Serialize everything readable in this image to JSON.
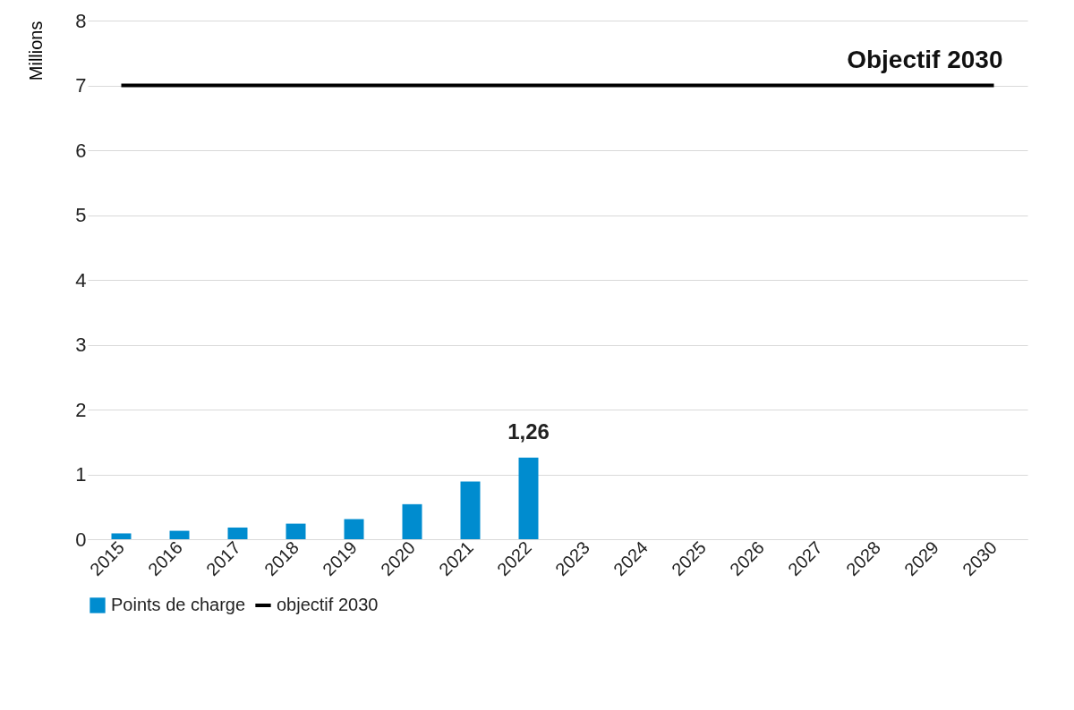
{
  "chart_data": {
    "type": "bar",
    "ylabel": "Millions",
    "categories": [
      "2015",
      "2016",
      "2017",
      "2018",
      "2019",
      "2020",
      "2021",
      "2022",
      "2023",
      "2024",
      "2025",
      "2026",
      "2027",
      "2028",
      "2029",
      "2030"
    ],
    "series": [
      {
        "name": "Points de charge",
        "color": "#008ccf",
        "values": [
          0.09,
          0.13,
          0.18,
          0.24,
          0.31,
          0.54,
          0.89,
          1.26,
          null,
          null,
          null,
          null,
          null,
          null,
          null,
          null
        ],
        "value_labels": [
          null,
          null,
          null,
          null,
          null,
          null,
          null,
          "1,26",
          null,
          null,
          null,
          null,
          null,
          null,
          null,
          null
        ]
      },
      {
        "name": "objectif 2030",
        "type": "line",
        "color": "#000000",
        "values": [
          7,
          7,
          7,
          7,
          7,
          7,
          7,
          7,
          7,
          7,
          7,
          7,
          7,
          7,
          7,
          7
        ]
      }
    ],
    "ylim": [
      0,
      8
    ],
    "yticks": [
      0,
      1,
      2,
      3,
      4,
      5,
      6,
      7,
      8
    ],
    "grid": "y",
    "legend": "bottom",
    "marker": "none",
    "line_style": "solid",
    "annotations": [
      {
        "text": "Objectif 2030",
        "x": "2030",
        "y": 7
      }
    ]
  }
}
